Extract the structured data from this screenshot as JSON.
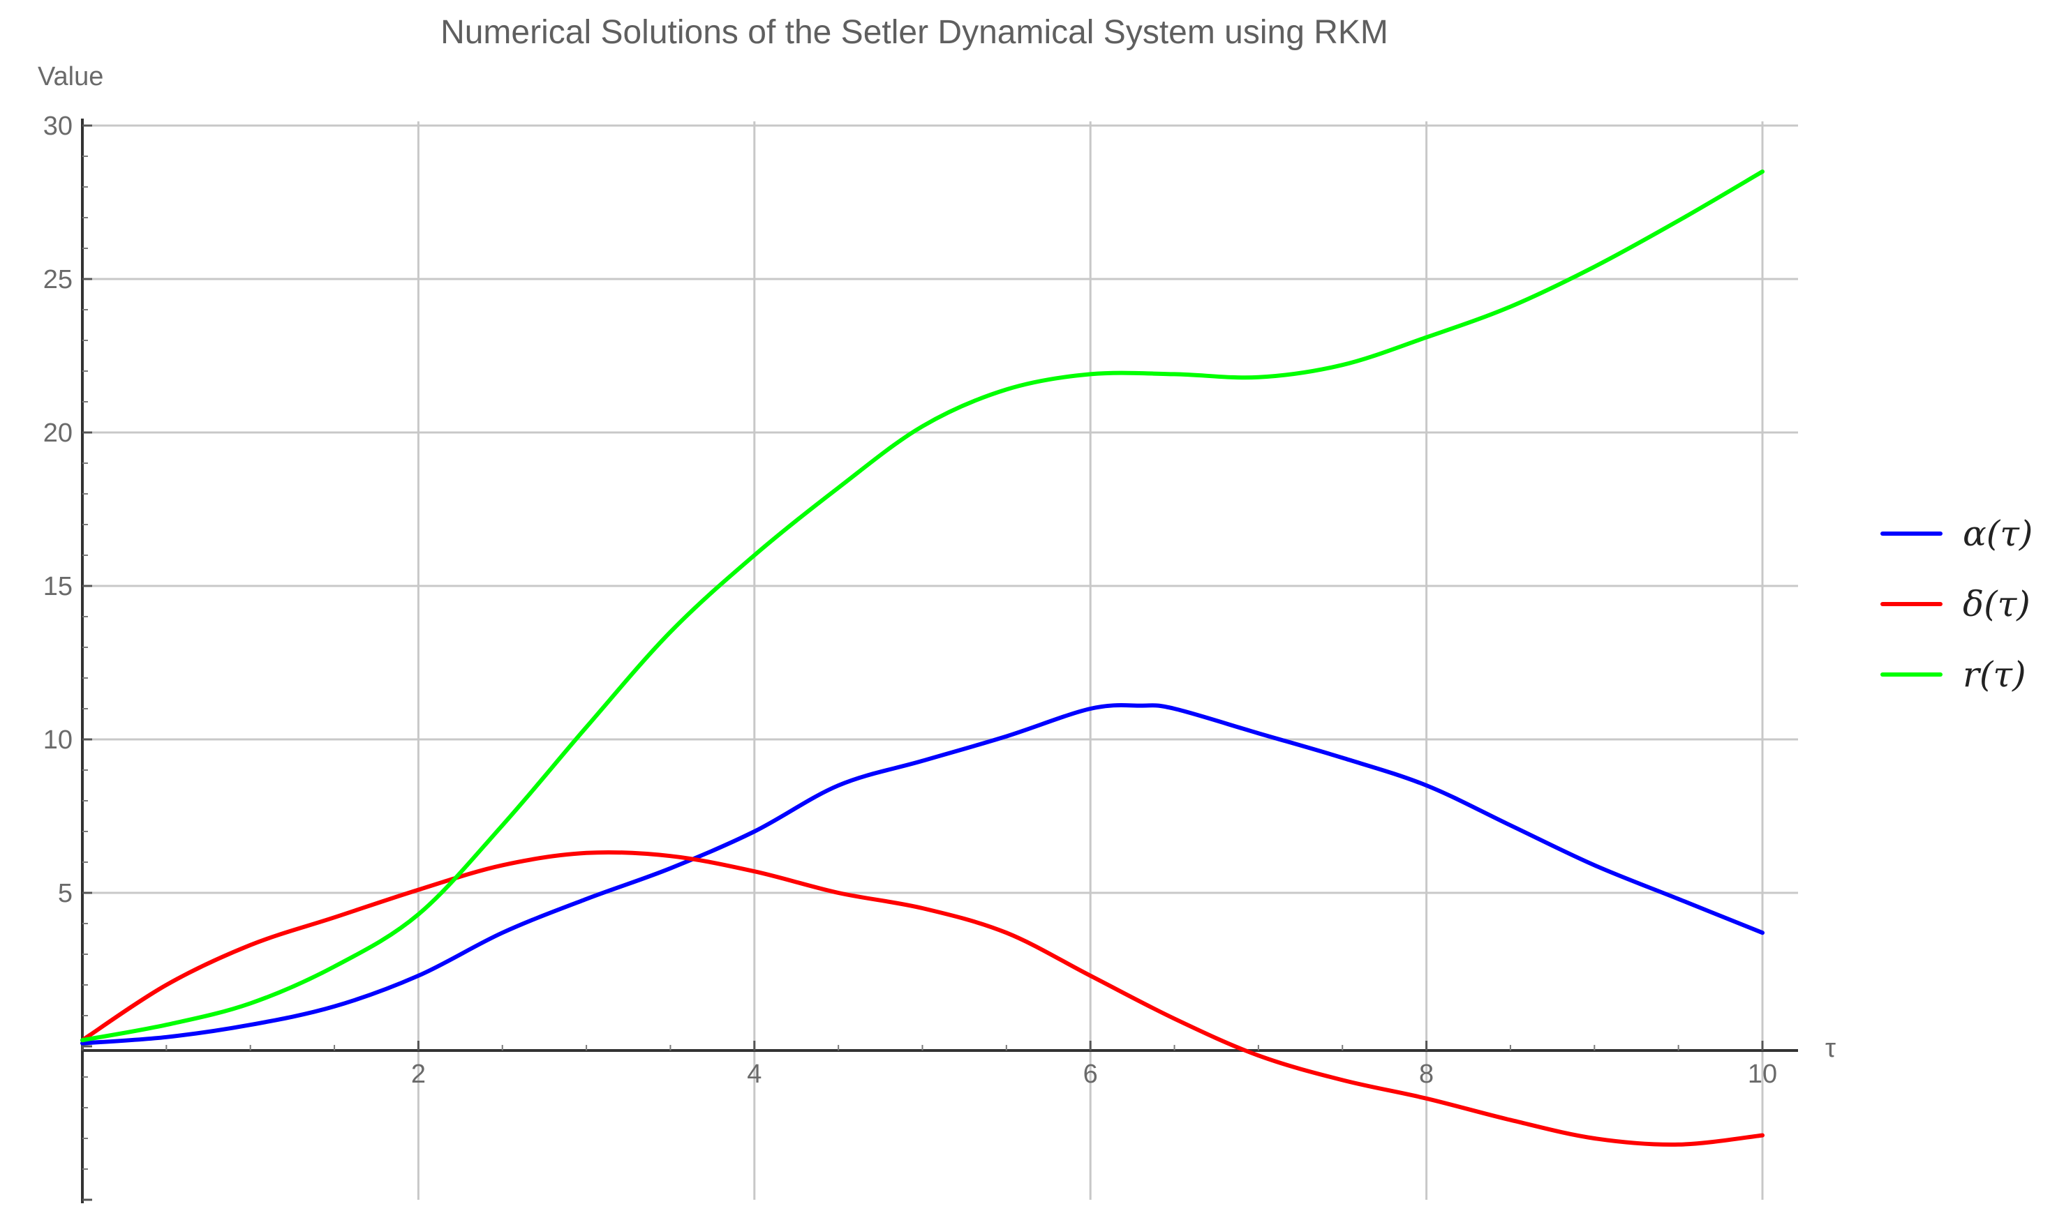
{
  "chart_data": {
    "type": "line",
    "title": "Numerical Solutions of the Setler Dynamical System using RKM",
    "xlabel": "τ",
    "ylabel": "Value",
    "xlim": [
      0,
      10
    ],
    "ylim": [
      -5,
      30
    ],
    "xticks": [
      2,
      4,
      6,
      8,
      10
    ],
    "yticks": [
      5,
      10,
      15,
      20,
      25,
      30
    ],
    "xtick_labels": [
      "2",
      "4",
      "6",
      "8",
      "10"
    ],
    "ytick_labels": [
      "5",
      "10",
      "15",
      "20",
      "25",
      "30"
    ],
    "grid": true,
    "legend_position": "right",
    "series": [
      {
        "name": "α(τ)",
        "color": "#0000ff",
        "x": [
          0,
          0.5,
          1,
          1.5,
          2,
          2.5,
          3,
          3.5,
          4,
          4.5,
          5,
          5.5,
          6,
          6.3,
          6.5,
          7,
          7.5,
          8,
          8.5,
          9,
          9.5,
          10
        ],
        "y": [
          0.1,
          0.3,
          0.7,
          1.3,
          2.3,
          3.7,
          4.8,
          5.8,
          7.0,
          8.5,
          9.3,
          10.1,
          11.0,
          11.1,
          11.0,
          10.2,
          9.4,
          8.5,
          7.2,
          5.9,
          4.8,
          3.7
        ]
      },
      {
        "name": "δ(τ)",
        "color": "#ff0000",
        "x": [
          0,
          0.5,
          1,
          1.5,
          2,
          2.5,
          3,
          3.5,
          4,
          4.5,
          5,
          5.5,
          6,
          6.5,
          7,
          7.5,
          8,
          8.5,
          9,
          9.5,
          10
        ],
        "y": [
          0.2,
          2.0,
          3.3,
          4.2,
          5.1,
          5.9,
          6.3,
          6.2,
          5.7,
          5.0,
          4.5,
          3.7,
          2.3,
          0.9,
          -0.3,
          -1.1,
          -1.7,
          -2.4,
          -3.0,
          -3.2,
          -2.9
        ]
      },
      {
        "name": "r(τ)",
        "color": "#00ff00",
        "x": [
          0,
          0.5,
          1,
          1.5,
          2,
          2.5,
          3,
          3.5,
          4,
          4.5,
          5,
          5.5,
          6,
          6.5,
          7,
          7.5,
          8,
          8.5,
          9,
          9.5,
          10
        ],
        "y": [
          0.2,
          0.7,
          1.4,
          2.6,
          4.3,
          7.2,
          10.4,
          13.5,
          16.0,
          18.2,
          20.2,
          21.4,
          21.9,
          21.9,
          21.8,
          22.2,
          23.1,
          24.1,
          25.4,
          26.9,
          28.5
        ]
      }
    ]
  }
}
